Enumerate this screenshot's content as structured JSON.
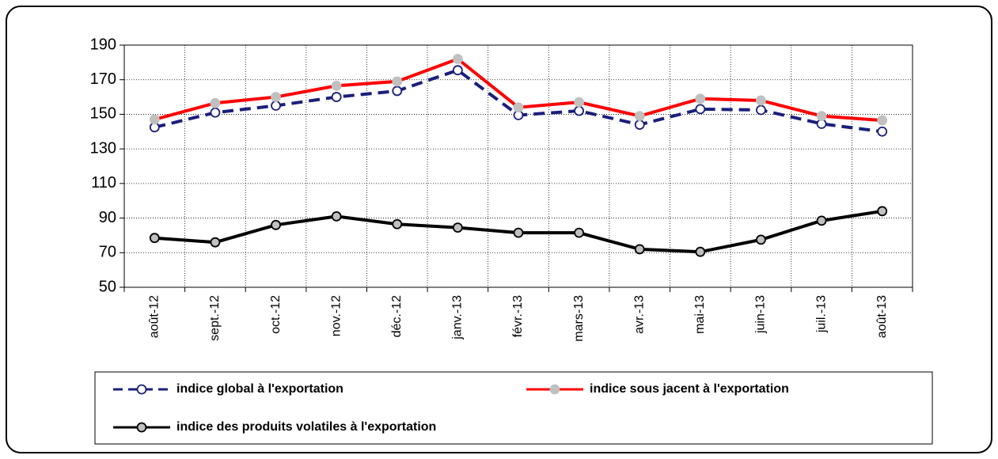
{
  "chart_data": {
    "type": "line",
    "categories": [
      "août-12",
      "sept.-12",
      "oct.-12",
      "nov.-12",
      "déc.-12",
      "janv.-13",
      "févr.-13",
      "mars-13",
      "avr.-13",
      "mai-13",
      "juin-13",
      "juil.-13",
      "août-13"
    ],
    "series": [
      {
        "name": "indice global à l'exportation",
        "color": "#1a1f7a",
        "dashed": true,
        "marker_fill": "#ffffff",
        "values": [
          142.5,
          151,
          155,
          160,
          163.5,
          175.5,
          149.5,
          152,
          144,
          153,
          152.5,
          144.5,
          140
        ]
      },
      {
        "name": "indice sous jacent à l'exportation",
        "color": "#ff0000",
        "dashed": false,
        "marker_fill": "#c0c0c0",
        "values": [
          147,
          156.5,
          160,
          166.5,
          169,
          182,
          154,
          157,
          149,
          159,
          158,
          149,
          146.5
        ]
      },
      {
        "name": "indice des produits volatiles à l'exportation",
        "color": "#000000",
        "dashed": false,
        "marker_fill": "#c0c0c0",
        "values": [
          78.5,
          76,
          86,
          91,
          86.5,
          84.5,
          81.5,
          81.5,
          72,
          70.5,
          77.5,
          88.5,
          94
        ]
      }
    ],
    "ylim": [
      50,
      190
    ],
    "yticks": [
      50,
      70,
      90,
      110,
      130,
      150,
      170,
      190
    ],
    "grid": true,
    "legend": "bottom"
  }
}
